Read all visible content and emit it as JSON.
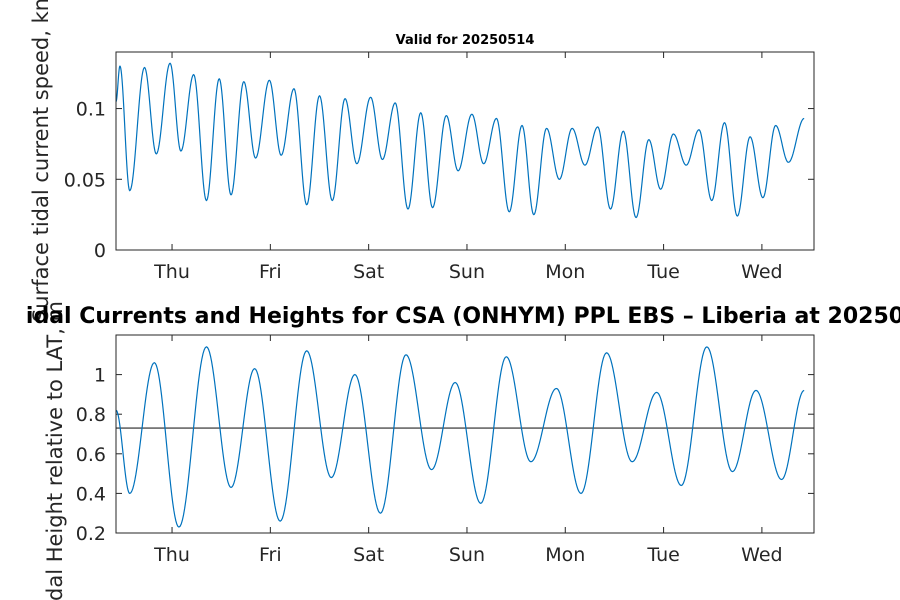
{
  "figure": {
    "main_title": "idal Currents and Heights for CSA (ONHYM) PPL EBS  – Liberia at 20250",
    "subtitle": "Valid for 20250514"
  },
  "colors": {
    "series": "#0072BD",
    "reference_line": "#262626",
    "axes": "#262626",
    "background": "#ffffff"
  },
  "chart_data": [
    {
      "type": "line",
      "title": "Valid for 20250514",
      "ylabel": "Surface tidal current speed, kn",
      "xlim": [
        0,
        7.1
      ],
      "ylim": [
        0,
        0.14
      ],
      "x_ticks": [
        {
          "value": 0.57,
          "label": "Thu"
        },
        {
          "value": 1.57,
          "label": "Fri"
        },
        {
          "value": 2.57,
          "label": "Sat"
        },
        {
          "value": 3.57,
          "label": "Sun"
        },
        {
          "value": 4.57,
          "label": "Mon"
        },
        {
          "value": 5.57,
          "label": "Tue"
        },
        {
          "value": 6.57,
          "label": "Wed"
        }
      ],
      "y_ticks": [
        {
          "value": 0,
          "label": "0"
        },
        {
          "value": 0.05,
          "label": "0.05"
        },
        {
          "value": 0.1,
          "label": "0.1"
        }
      ],
      "grid": false,
      "series": [
        {
          "extrema": [
            [
              0.0,
              0.105
            ],
            [
              0.04,
              0.13
            ],
            [
              0.14,
              0.042
            ],
            [
              0.29,
              0.129
            ],
            [
              0.41,
              0.068
            ],
            [
              0.55,
              0.132
            ],
            [
              0.66,
              0.07
            ],
            [
              0.79,
              0.124
            ],
            [
              0.92,
              0.035
            ],
            [
              1.05,
              0.121
            ],
            [
              1.17,
              0.039
            ],
            [
              1.3,
              0.119
            ],
            [
              1.42,
              0.065
            ],
            [
              1.56,
              0.12
            ],
            [
              1.68,
              0.067
            ],
            [
              1.81,
              0.114
            ],
            [
              1.94,
              0.032
            ],
            [
              2.07,
              0.109
            ],
            [
              2.2,
              0.035
            ],
            [
              2.33,
              0.107
            ],
            [
              2.45,
              0.061
            ],
            [
              2.59,
              0.108
            ],
            [
              2.71,
              0.064
            ],
            [
              2.84,
              0.104
            ],
            [
              2.97,
              0.029
            ],
            [
              3.1,
              0.097
            ],
            [
              3.22,
              0.03
            ],
            [
              3.36,
              0.095
            ],
            [
              3.48,
              0.056
            ],
            [
              3.62,
              0.096
            ],
            [
              3.74,
              0.061
            ],
            [
              3.87,
              0.093
            ],
            [
              4.0,
              0.027
            ],
            [
              4.13,
              0.088
            ],
            [
              4.25,
              0.025
            ],
            [
              4.38,
              0.086
            ],
            [
              4.51,
              0.05
            ],
            [
              4.64,
              0.086
            ],
            [
              4.77,
              0.06
            ],
            [
              4.9,
              0.087
            ],
            [
              5.03,
              0.029
            ],
            [
              5.16,
              0.084
            ],
            [
              5.29,
              0.023
            ],
            [
              5.42,
              0.078
            ],
            [
              5.54,
              0.043
            ],
            [
              5.67,
              0.082
            ],
            [
              5.8,
              0.06
            ],
            [
              5.93,
              0.085
            ],
            [
              6.06,
              0.035
            ],
            [
              6.19,
              0.09
            ],
            [
              6.32,
              0.024
            ],
            [
              6.45,
              0.08
            ],
            [
              6.58,
              0.037
            ],
            [
              6.71,
              0.088
            ],
            [
              6.84,
              0.062
            ],
            [
              7.0,
              0.093
            ]
          ]
        }
      ]
    },
    {
      "type": "line",
      "title": "",
      "ylabel": "Tidal Height relative to LAT, m",
      "xlim": [
        0,
        7.1
      ],
      "ylim": [
        0.2,
        1.2
      ],
      "x_ticks": [
        {
          "value": 0.57,
          "label": "Thu"
        },
        {
          "value": 1.57,
          "label": "Fri"
        },
        {
          "value": 2.57,
          "label": "Sat"
        },
        {
          "value": 3.57,
          "label": "Sun"
        },
        {
          "value": 4.57,
          "label": "Mon"
        },
        {
          "value": 5.57,
          "label": "Tue"
        },
        {
          "value": 6.57,
          "label": "Wed"
        }
      ],
      "y_ticks": [
        {
          "value": 0.2,
          "label": "0.2"
        },
        {
          "value": 0.4,
          "label": "0.4"
        },
        {
          "value": 0.6,
          "label": "0.6"
        },
        {
          "value": 0.8,
          "label": "0.8"
        },
        {
          "value": 1,
          "label": "1"
        }
      ],
      "reference_line": 0.73,
      "grid": false,
      "series": [
        {
          "extrema": [
            [
              0.0,
              0.82
            ],
            [
              0.14,
              0.4
            ],
            [
              0.39,
              1.06
            ],
            [
              0.64,
              0.23
            ],
            [
              0.92,
              1.14
            ],
            [
              1.17,
              0.43
            ],
            [
              1.41,
              1.03
            ],
            [
              1.67,
              0.26
            ],
            [
              1.94,
              1.12
            ],
            [
              2.19,
              0.48
            ],
            [
              2.43,
              1.0
            ],
            [
              2.69,
              0.3
            ],
            [
              2.95,
              1.1
            ],
            [
              3.21,
              0.52
            ],
            [
              3.45,
              0.96
            ],
            [
              3.71,
              0.35
            ],
            [
              3.97,
              1.09
            ],
            [
              4.22,
              0.56
            ],
            [
              4.48,
              0.93
            ],
            [
              4.73,
              0.4
            ],
            [
              4.99,
              1.11
            ],
            [
              5.25,
              0.56
            ],
            [
              5.5,
              0.91
            ],
            [
              5.75,
              0.44
            ],
            [
              6.01,
              1.14
            ],
            [
              6.27,
              0.51
            ],
            [
              6.51,
              0.92
            ],
            [
              6.77,
              0.47
            ],
            [
              7.0,
              0.92
            ]
          ]
        }
      ]
    }
  ]
}
